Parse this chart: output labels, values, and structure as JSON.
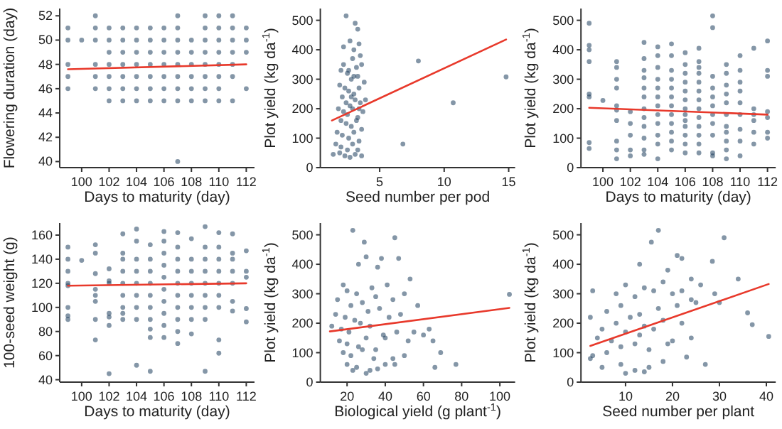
{
  "chart_data": [
    {
      "type": "scatter",
      "xlabel": "Days to maturity (day)",
      "ylabel": "Flowering duration (day)",
      "xlim": [
        98.4,
        112.6
      ],
      "ylim": [
        39.5,
        52.6
      ],
      "xticks": [
        100,
        102,
        104,
        106,
        108,
        110,
        112
      ],
      "yticks": [
        40,
        42,
        44,
        46,
        48,
        50,
        52
      ],
      "grid": false,
      "series": [
        {
          "color": "#1f3f5f",
          "marker": "circle",
          "x": [
            99,
            99,
            99,
            99,
            99,
            100,
            101,
            101,
            101,
            101,
            101,
            101,
            102,
            102,
            102,
            102,
            102,
            102,
            102,
            103,
            103,
            103,
            103,
            103,
            103,
            103,
            104,
            104,
            104,
            104,
            104,
            104,
            104,
            105,
            105,
            105,
            105,
            105,
            105,
            105,
            106,
            106,
            106,
            106,
            106,
            106,
            106,
            107,
            107,
            107,
            107,
            107,
            107,
            107,
            107,
            107,
            108,
            108,
            108,
            108,
            108,
            108,
            109,
            109,
            109,
            109,
            109,
            109,
            109,
            109,
            110,
            110,
            110,
            110,
            110,
            110,
            110,
            110,
            111,
            111,
            111,
            111,
            111,
            111,
            111,
            112,
            112,
            112,
            112
          ],
          "values": [
            51,
            50,
            48,
            47,
            46,
            50,
            52,
            51,
            50,
            48,
            47,
            46,
            51,
            50,
            49,
            48,
            47,
            46,
            45,
            51,
            50,
            49,
            48,
            47,
            46,
            45,
            51,
            50,
            49,
            48,
            47,
            46,
            45,
            51,
            50,
            49,
            48,
            47,
            46,
            45,
            51,
            50,
            49,
            48,
            47,
            46,
            45,
            52,
            51,
            50,
            49,
            48,
            47,
            46,
            45,
            40,
            50,
            49,
            48,
            47,
            46,
            45,
            52,
            51,
            50,
            49,
            48,
            47,
            46,
            45,
            52,
            51,
            50,
            49,
            48,
            47,
            46,
            45,
            52,
            51,
            50,
            49,
            48,
            47,
            45,
            51,
            50,
            49,
            46
          ]
        },
        {
          "type": "line",
          "color": "#e8392b",
          "x": [
            99,
            112
          ],
          "values": [
            47.6,
            48.0
          ]
        }
      ]
    },
    {
      "type": "scatter",
      "xlabel": "Seed number per pod",
      "ylabel": "Plot yield (kg da$^{-1}$)",
      "xlim": [
        0.4,
        15.5
      ],
      "ylim": [
        0,
        540
      ],
      "xticks": [
        5,
        10,
        15
      ],
      "yticks": [
        0,
        100,
        200,
        300,
        400,
        500
      ],
      "grid": false,
      "series": [
        {
          "color": "#1f3f5f",
          "marker": "circle",
          "x": [
            2.4,
            3.1,
            3.3,
            3.4,
            2.7,
            3.0,
            3.5,
            2.2,
            2.9,
            3.2,
            3.6,
            2.0,
            2.5,
            2.8,
            3.3,
            3.8,
            1.9,
            2.3,
            2.6,
            3.0,
            3.4,
            3.9,
            2.1,
            2.4,
            2.7,
            3.1,
            3.5,
            1.8,
            2.2,
            2.5,
            2.9,
            3.3,
            3.7,
            2.0,
            2.4,
            2.8,
            3.2,
            3.6,
            1.7,
            2.1,
            2.6,
            3.0,
            3.4,
            1.6,
            2.0,
            2.5,
            2.9,
            3.3,
            1.4,
            1.9,
            2.3,
            2.7,
            3.1,
            3.6,
            2.2,
            2.6,
            3.0,
            2.8,
            3.4,
            6.8,
            8.0,
            10.7,
            14.8
          ],
          "values": [
            515,
            490,
            470,
            420,
            430,
            400,
            380,
            410,
            370,
            340,
            350,
            330,
            320,
            300,
            310,
            290,
            280,
            270,
            260,
            250,
            270,
            230,
            240,
            220,
            210,
            230,
            220,
            200,
            190,
            180,
            200,
            170,
            190,
            160,
            150,
            140,
            160,
            130,
            120,
            110,
            100,
            120,
            90,
            80,
            70,
            60,
            80,
            60,
            45,
            50,
            40,
            35,
            45,
            40,
            350,
            330,
            310,
            240,
            200,
            80,
            362,
            220,
            308
          ]
        },
        {
          "type": "line",
          "color": "#e8392b",
          "x": [
            1.3,
            14.8
          ],
          "values": [
            160,
            435
          ]
        }
      ]
    },
    {
      "type": "scatter",
      "xlabel": "Days to maturity (day)",
      "ylabel": "Plot yield (kg da$^{-1}$)",
      "xlim": [
        98.4,
        112.6
      ],
      "ylim": [
        0,
        540
      ],
      "xticks": [
        100,
        102,
        104,
        106,
        108,
        110,
        112
      ],
      "yticks": [
        0,
        100,
        200,
        300,
        400,
        500
      ],
      "grid": false,
      "series": [
        {
          "color": "#1f3f5f",
          "marker": "circle",
          "x": [
            99,
            99,
            99,
            99,
            99,
            99,
            99,
            99,
            100,
            101,
            101,
            101,
            101,
            101,
            101,
            101,
            101,
            101,
            101,
            102,
            102,
            102,
            102,
            102,
            103,
            103,
            103,
            103,
            103,
            103,
            103,
            103,
            103,
            103,
            103,
            103,
            104,
            104,
            104,
            104,
            104,
            104,
            104,
            104,
            104,
            104,
            104,
            104,
            105,
            105,
            105,
            105,
            105,
            105,
            105,
            105,
            105,
            105,
            105,
            105,
            106,
            106,
            106,
            106,
            106,
            106,
            106,
            106,
            106,
            106,
            106,
            106,
            106,
            107,
            107,
            107,
            107,
            107,
            107,
            107,
            107,
            107,
            107,
            107,
            107,
            107,
            108,
            108,
            108,
            108,
            108,
            108,
            108,
            108,
            108,
            108,
            108,
            109,
            109,
            109,
            109,
            109,
            109,
            109,
            109,
            109,
            109,
            109,
            110,
            110,
            110,
            110,
            110,
            110,
            110,
            110,
            110,
            111,
            111,
            111,
            111,
            111,
            111,
            112,
            112,
            112,
            112,
            112,
            112,
            112
          ],
          "values": [
            490,
            415,
            400,
            360,
            250,
            240,
            85,
            65,
            228,
            360,
            340,
            300,
            270,
            210,
            195,
            160,
            90,
            60,
            30,
            190,
            150,
            110,
            60,
            40,
            425,
            370,
            330,
            305,
            270,
            240,
            200,
            170,
            140,
            100,
            60,
            45,
            410,
            380,
            340,
            300,
            270,
            240,
            210,
            180,
            150,
            110,
            80,
            30,
            420,
            380,
            330,
            300,
            270,
            240,
            210,
            180,
            150,
            120,
            90,
            60,
            390,
            350,
            320,
            290,
            260,
            230,
            200,
            180,
            160,
            140,
            110,
            80,
            50,
            405,
            360,
            340,
            320,
            290,
            260,
            230,
            200,
            170,
            140,
            110,
            80,
            50,
            515,
            475,
            310,
            270,
            240,
            210,
            180,
            150,
            110,
            50,
            40,
            350,
            320,
            280,
            250,
            220,
            180,
            140,
            120,
            90,
            60,
            30,
            380,
            330,
            290,
            260,
            220,
            180,
            130,
            90,
            40,
            405,
            200,
            180,
            160,
            120,
            80,
            430,
            330,
            310,
            190,
            170,
            120,
            100
          ]
        },
        {
          "type": "line",
          "color": "#e8392b",
          "x": [
            99,
            112
          ],
          "values": [
            203,
            180
          ]
        }
      ]
    },
    {
      "type": "scatter",
      "xlabel": "Days to maturity (day)",
      "ylabel": "100-seed weight (g)",
      "xlim": [
        98.4,
        112.6
      ],
      "ylim": [
        38,
        170
      ],
      "xticks": [
        100,
        102,
        104,
        106,
        108,
        110,
        112
      ],
      "yticks": [
        40,
        60,
        80,
        100,
        120,
        140,
        160
      ],
      "grid": false,
      "series": [
        {
          "color": "#1f3f5f",
          "marker": "circle",
          "x": [
            99,
            99,
            99,
            99,
            99,
            99,
            99,
            99,
            100,
            101,
            101,
            101,
            101,
            101,
            101,
            101,
            101,
            102,
            102,
            102,
            102,
            102,
            102,
            102,
            103,
            103,
            103,
            103,
            103,
            103,
            103,
            103,
            103,
            104,
            104,
            104,
            104,
            104,
            104,
            104,
            104,
            104,
            105,
            105,
            105,
            105,
            105,
            105,
            105,
            105,
            105,
            105,
            106,
            106,
            106,
            106,
            106,
            106,
            106,
            106,
            106,
            106,
            107,
            107,
            107,
            107,
            107,
            107,
            107,
            107,
            107,
            107,
            108,
            108,
            108,
            108,
            108,
            108,
            108,
            108,
            109,
            109,
            109,
            109,
            109,
            109,
            109,
            109,
            109,
            110,
            110,
            110,
            110,
            110,
            110,
            110,
            110,
            110,
            111,
            111,
            111,
            111,
            111,
            111,
            111,
            112,
            112,
            112,
            112,
            112
          ],
          "values": [
            150,
            140,
            130,
            120,
            118,
            100,
            93,
            90,
            139,
            152,
            145,
            128,
            115,
            110,
            105,
            90,
            73,
            132,
            122,
            120,
            95,
            92,
            85,
            45,
            161,
            145,
            140,
            130,
            120,
            110,
            100,
            95,
            90,
            165,
            155,
            140,
            130,
            120,
            110,
            100,
            90,
            52,
            152,
            140,
            130,
            120,
            110,
            100,
            90,
            82,
            75,
            47,
            163,
            155,
            145,
            135,
            125,
            115,
            105,
            95,
            85,
            75,
            162,
            150,
            140,
            130,
            120,
            110,
            100,
            90,
            80,
            70,
            157,
            140,
            130,
            120,
            110,
            100,
            90,
            78,
            167,
            150,
            140,
            130,
            120,
            110,
            100,
            90,
            47,
            162,
            150,
            140,
            130,
            120,
            110,
            100,
            73,
            62,
            161,
            145,
            140,
            130,
            120,
            105,
            97,
            147,
            130,
            125,
            99,
            88
          ]
        },
        {
          "type": "line",
          "color": "#e8392b",
          "x": [
            99,
            112
          ],
          "values": [
            118,
            120
          ]
        }
      ]
    },
    {
      "type": "scatter",
      "xlabel": "Biological yield (g plant$^{-1}$)",
      "ylabel": "Plot yield (kg da$^{-1}$)",
      "xlim": [
        6,
        108
      ],
      "ylim": [
        0,
        540
      ],
      "xticks": [
        20,
        40,
        60,
        80,
        100
      ],
      "yticks": [
        0,
        100,
        200,
        300,
        400,
        500
      ],
      "grid": false,
      "series": [
        {
          "color": "#1f3f5f",
          "marker": "circle",
          "x": [
            23,
            29,
            45,
            38,
            47,
            30,
            26,
            36,
            18,
            20,
            25,
            33,
            41,
            50,
            53,
            15,
            22,
            28,
            35,
            44,
            57,
            14,
            19,
            24,
            31,
            37,
            42,
            48,
            63,
            12,
            17,
            21,
            27,
            32,
            39,
            46,
            55,
            65,
            16,
            20,
            26,
            30,
            35,
            40,
            52,
            60,
            18,
            22,
            28,
            34,
            44,
            50,
            66,
            69,
            20,
            25,
            32,
            40,
            23,
            30,
            36,
            45,
            77,
            105
          ],
          "values": [
            515,
            475,
            490,
            420,
            420,
            425,
            400,
            390,
            330,
            310,
            300,
            320,
            330,
            300,
            350,
            280,
            260,
            270,
            290,
            280,
            260,
            230,
            220,
            210,
            240,
            250,
            220,
            230,
            180,
            190,
            180,
            170,
            200,
            190,
            160,
            170,
            170,
            140,
            140,
            130,
            120,
            150,
            110,
            150,
            140,
            160,
            100,
            90,
            110,
            80,
            80,
            90,
            50,
            100,
            60,
            50,
            40,
            60,
            40,
            30,
            45,
            60,
            60,
            298
          ]
        },
        {
          "type": "line",
          "color": "#e8392b",
          "x": [
            11,
            105
          ],
          "values": [
            172,
            252
          ]
        }
      ]
    },
    {
      "type": "scatter",
      "xlabel": "Seed number per plant",
      "ylabel": "Plot yield (kg da$^{-1}$)",
      "xlim": [
        0.5,
        42
      ],
      "ylim": [
        0,
        540
      ],
      "xticks": [
        10,
        20,
        30,
        40
      ],
      "yticks": [
        0,
        100,
        200,
        300,
        400,
        500
      ],
      "grid": false,
      "series": [
        {
          "color": "#1f3f5f",
          "marker": "circle",
          "x": [
            17,
            15.5,
            31,
            21,
            22,
            28.5,
            34,
            13,
            19,
            24,
            10,
            14,
            18,
            22,
            26,
            29,
            3,
            8,
            12,
            16,
            20,
            24,
            2.5,
            6,
            9,
            13,
            17,
            21,
            25,
            30,
            36,
            5,
            8,
            11,
            14,
            18,
            22,
            37,
            4,
            7,
            10,
            13,
            16,
            20,
            24,
            3,
            6,
            9,
            12,
            15,
            19,
            23,
            40.5,
            2.5,
            5,
            9,
            12,
            15,
            18,
            27,
            10,
            14
          ],
          "values": [
            515,
            475,
            490,
            430,
            420,
            410,
            350,
            400,
            380,
            350,
            330,
            320,
            340,
            310,
            330,
            300,
            310,
            300,
            290,
            310,
            300,
            280,
            220,
            240,
            260,
            230,
            250,
            260,
            270,
            270,
            235,
            180,
            200,
            220,
            190,
            210,
            200,
            195,
            150,
            140,
            170,
            160,
            180,
            140,
            150,
            90,
            100,
            120,
            130,
            110,
            130,
            85,
            155,
            80,
            50,
            60,
            40,
            50,
            70,
            60,
            30,
            35
          ]
        },
        {
          "type": "line",
          "color": "#e8392b",
          "x": [
            2.5,
            40.5
          ],
          "values": [
            123,
            333
          ]
        }
      ]
    }
  ]
}
